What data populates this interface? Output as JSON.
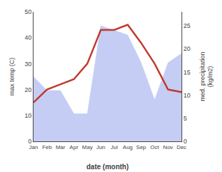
{
  "chart_data": {
    "type": "line",
    "categories": [
      "Jan",
      "Feb",
      "Mar",
      "Apr",
      "May",
      "Jun",
      "Jul",
      "Aug",
      "Sep",
      "Oct",
      "Nov",
      "Dec"
    ],
    "xlabel": "date (month)",
    "ylabel": "max temp (C)",
    "y2label": "med. precipitation\n(kg/m2)",
    "series": [
      {
        "type": "area",
        "axis": "y2",
        "color": "#c5cdf5",
        "values": [
          14,
          11,
          11,
          6,
          6,
          25,
          24,
          23,
          17,
          9,
          17,
          19
        ]
      },
      {
        "type": "line",
        "color": "#c0392b",
        "values": [
          15,
          20,
          22,
          24,
          30,
          43,
          43,
          45,
          38,
          30,
          20,
          19
        ]
      }
    ],
    "ylim": [
      0,
      50
    ],
    "yticks": [
      0,
      10,
      20,
      30,
      40,
      50
    ],
    "y2lim": [
      0,
      28
    ],
    "y2ticks": [
      0,
      5,
      10,
      15,
      20,
      25
    ],
    "grid": false
  }
}
